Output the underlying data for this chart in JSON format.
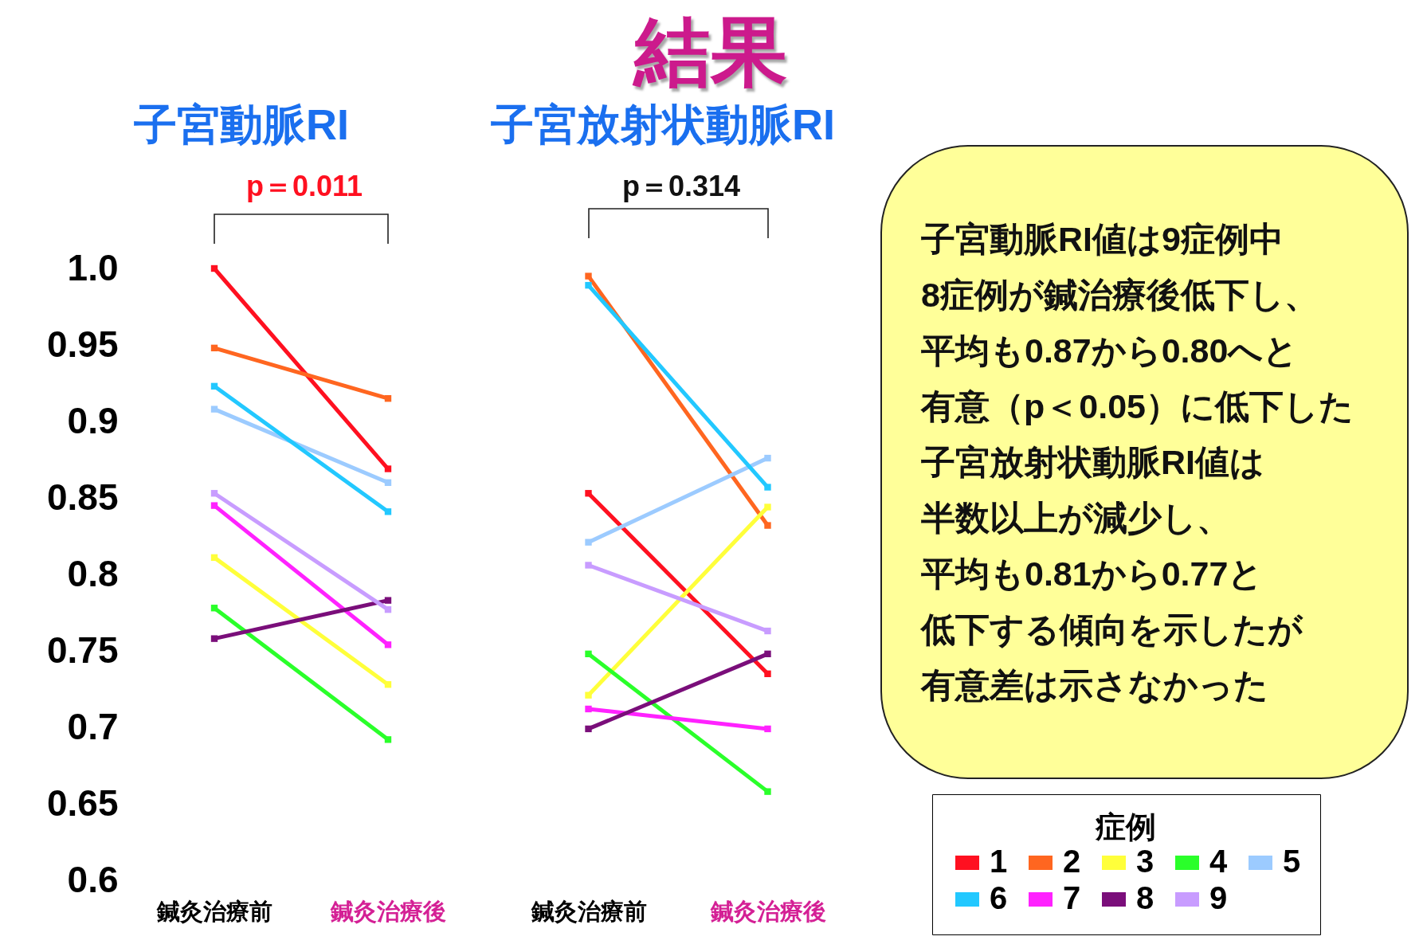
{
  "chart_data": [
    {
      "type": "line",
      "title": "子宮動脈RI",
      "categories": [
        "鍼灸治療前",
        "鍼灸治療後"
      ],
      "ylim": [
        0.6,
        1.0
      ],
      "yticks": [
        0.6,
        0.65,
        0.7,
        0.75,
        0.8,
        0.85,
        0.9,
        0.95,
        {
          "value": 1,
          "label": "1.0"
        }
      ],
      "marker": "square",
      "annotations": [
        "p＝0.011"
      ],
      "series": [
        {
          "color": "#ff1020",
          "values": [
            1.0,
            0.869
          ]
        },
        {
          "color": "#ff6620",
          "values": [
            0.948,
            0.915
          ]
        },
        {
          "color": "#ffff3a",
          "values": [
            0.811,
            0.728
          ]
        },
        {
          "color": "#2aff2a",
          "values": [
            0.778,
            0.692
          ]
        },
        {
          "color": "#9ccbff",
          "values": [
            0.908,
            0.86
          ]
        },
        {
          "color": "#22c8ff",
          "values": [
            0.923,
            0.841
          ]
        },
        {
          "color": "#ff22ff",
          "values": [
            0.845,
            0.754
          ]
        },
        {
          "color": "#7a0e7a",
          "values": [
            0.758,
            0.783
          ]
        },
        {
          "color": "#c89cff",
          "values": [
            0.853,
            0.777
          ]
        }
      ]
    },
    {
      "type": "line",
      "title": "子宮放射状動脈RI",
      "categories": [
        "鍼灸治療前",
        "鍼灸治療後"
      ],
      "ylim": [
        0.6,
        1.0
      ],
      "tick_labels": "x",
      "marker": "square",
      "annotations": [
        "p＝0.314"
      ],
      "legend": "bottom right",
      "legend_title": "症例",
      "series": [
        {
          "name": "1",
          "color": "#ff1020",
          "values": [
            0.853,
            0.735
          ]
        },
        {
          "name": "2",
          "color": "#ff6620",
          "values": [
            0.995,
            0.832
          ]
        },
        {
          "name": "3",
          "color": "#ffff3a",
          "values": [
            0.721,
            0.844
          ]
        },
        {
          "name": "4",
          "color": "#2aff2a",
          "values": [
            0.748,
            0.658
          ]
        },
        {
          "name": "5",
          "color": "#9ccbff",
          "values": [
            0.821,
            0.876
          ]
        },
        {
          "name": "6",
          "color": "#22c8ff",
          "values": [
            0.989,
            0.857
          ]
        },
        {
          "name": "7",
          "color": "#ff22ff",
          "values": [
            0.712,
            0.699
          ]
        },
        {
          "name": "8",
          "color": "#7a0e7a",
          "values": [
            0.699,
            0.748
          ]
        },
        {
          "name": "9",
          "color": "#c89cff",
          "values": [
            0.806,
            0.763
          ]
        }
      ]
    },
    {
      "type": "other",
      "title": "結果",
      "annotations": [
        "子宮動脈RI値は9症例中",
        "8症例が鍼治療後低下し、",
        "平均も0.87から0.80へと",
        "有意（p＜0.05）に低下した",
        "子宮放射状動脈RI値は",
        "半数以上が減少し、",
        "平均も0.81から0.77と",
        "低下する傾向を示したが",
        "有意差は示さなかった"
      ]
    }
  ]
}
